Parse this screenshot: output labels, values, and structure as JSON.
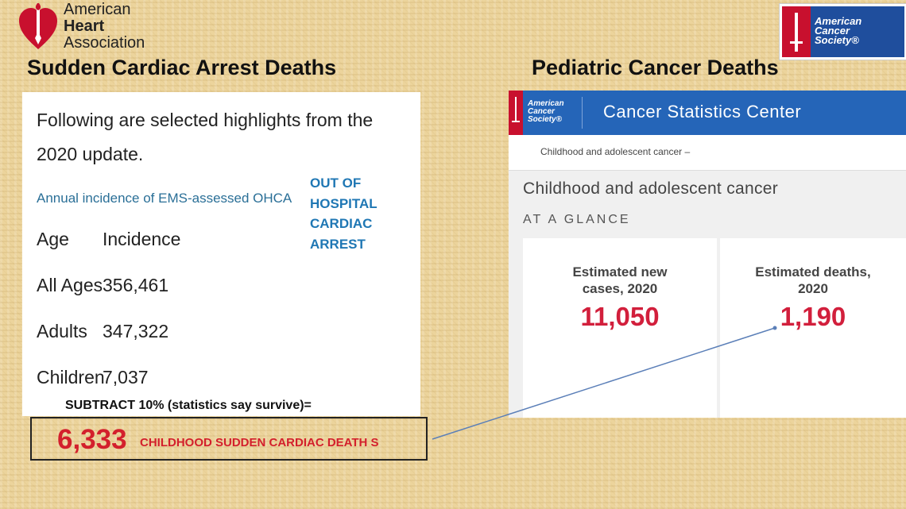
{
  "logos": {
    "aha": {
      "line1": "American",
      "line2": "Heart",
      "line3": "Association",
      "color": "#c8102e"
    },
    "acs": {
      "line1": "American",
      "line2": "Cancer",
      "line3": "Society®",
      "red": "#c8102e",
      "blue": "#1f4e9d"
    }
  },
  "left": {
    "heading": "Sudden Cardiac Arrest Deaths",
    "intro_line1": "Following are selected highlights from the",
    "intro_line2": "2020 update.",
    "subheading": "Annual incidence of EMS-assessed OHCA",
    "ohca_note": [
      "OUT OF",
      "HOSPITAL",
      "CARDIAC",
      "ARREST"
    ],
    "table": {
      "headers": [
        "Age",
        "Incidence"
      ],
      "rows": [
        [
          "All Ages",
          "356,461"
        ],
        [
          "Adults",
          "347,322"
        ],
        [
          "Children",
          "7,037"
        ]
      ]
    },
    "subtract_note": "SUBTRACT 10% (statistics say survive)=",
    "result_value": "6,333",
    "result_label": "CHILDHOOD SUDDEN CARDIAC DEATH S"
  },
  "right": {
    "heading": "Pediatric Cancer Deaths",
    "header_title": "Cancer Statistics Center",
    "breadcrumb": "Childhood and adolescent cancer  –",
    "section_title": "Childhood and adolescent cancer",
    "glance": "AT A GLANCE",
    "cards": [
      {
        "label_line1": "Estimated new",
        "label_line2": "cases, 2020",
        "value": "11,050"
      },
      {
        "label_line1": "Estimated deaths,",
        "label_line2": "2020",
        "value": "1,190"
      }
    ]
  },
  "colors": {
    "highlight_red": "#d3202c",
    "link_blue": "#1f77b4",
    "acs_blue": "#2565b8"
  }
}
